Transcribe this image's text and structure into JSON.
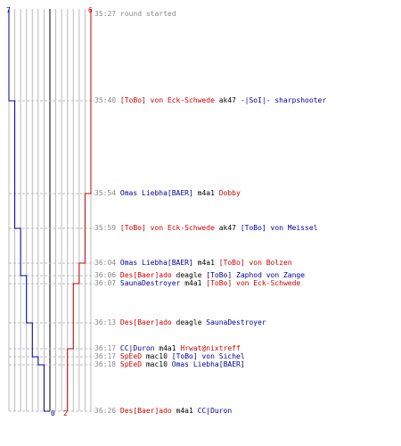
{
  "scores": {
    "blue_start": "7",
    "red_start": "6",
    "blue_end": "0",
    "red_end": "2"
  },
  "colors": {
    "red": "#cc0000",
    "blue": "#000099",
    "grid": "#bbbbbb",
    "timeline": "#555555"
  },
  "events": [
    {
      "time": "35:27",
      "message": "round started"
    },
    {
      "time": "35:40",
      "killer": "[ToBo] von Eck-Schwede",
      "killer_team": "red",
      "weapon": "ak47",
      "victim": "-|SoI|- sharpshooter",
      "victim_team": "blue"
    },
    {
      "time": "35:54",
      "killer": "Omas Liebha[BAER]",
      "killer_team": "blue",
      "weapon": "m4a1",
      "victim": "Dobby",
      "victim_team": "red"
    },
    {
      "time": "35:59",
      "killer": "[ToBo] von Eck-Schwede",
      "killer_team": "red",
      "weapon": "ak47",
      "victim": "[ToBo] von Meissel",
      "victim_team": "blue"
    },
    {
      "time": "36:04",
      "killer": "Omas Liebha[BAER]",
      "killer_team": "blue",
      "weapon": "m4a1",
      "victim": "[ToBo] von Bolzen",
      "victim_team": "red"
    },
    {
      "time": "36:06",
      "killer": "Des[Baer]ado",
      "killer_team": "red",
      "weapon": "deagle",
      "victim": "[ToBo] Zaphod von Zange",
      "victim_team": "blue"
    },
    {
      "time": "36:07",
      "killer": "SaunaDestroyer",
      "killer_team": "blue",
      "weapon": "m4a1",
      "victim": "[ToBo] von Eck-Schwede",
      "victim_team": "red"
    },
    {
      "time": "36:13",
      "killer": "Des[Baer]ado",
      "killer_team": "red",
      "weapon": "deagle",
      "victim": "SaunaDestroyer",
      "victim_team": "blue"
    },
    {
      "time": "36:17",
      "killer": "CC|Duron",
      "killer_team": "blue",
      "weapon": "m4a1",
      "victim": "Hrwat@nixtreff",
      "victim_team": "red"
    },
    {
      "time": "36:17",
      "killer": "SpEeD",
      "killer_team": "red",
      "weapon": "mac10",
      "victim": "[ToBo] von Sichel",
      "victim_team": "blue"
    },
    {
      "time": "36:18",
      "killer": "SpEeD",
      "killer_team": "red",
      "weapon": "mac10",
      "victim": "Omas Liebha[BAER]",
      "victim_team": "blue"
    },
    {
      "time": "36:26",
      "killer": "Des[Baer]ado",
      "killer_team": "red",
      "weapon": "m4a1",
      "victim": "CC|Duron",
      "victim_team": "blue"
    }
  ]
}
